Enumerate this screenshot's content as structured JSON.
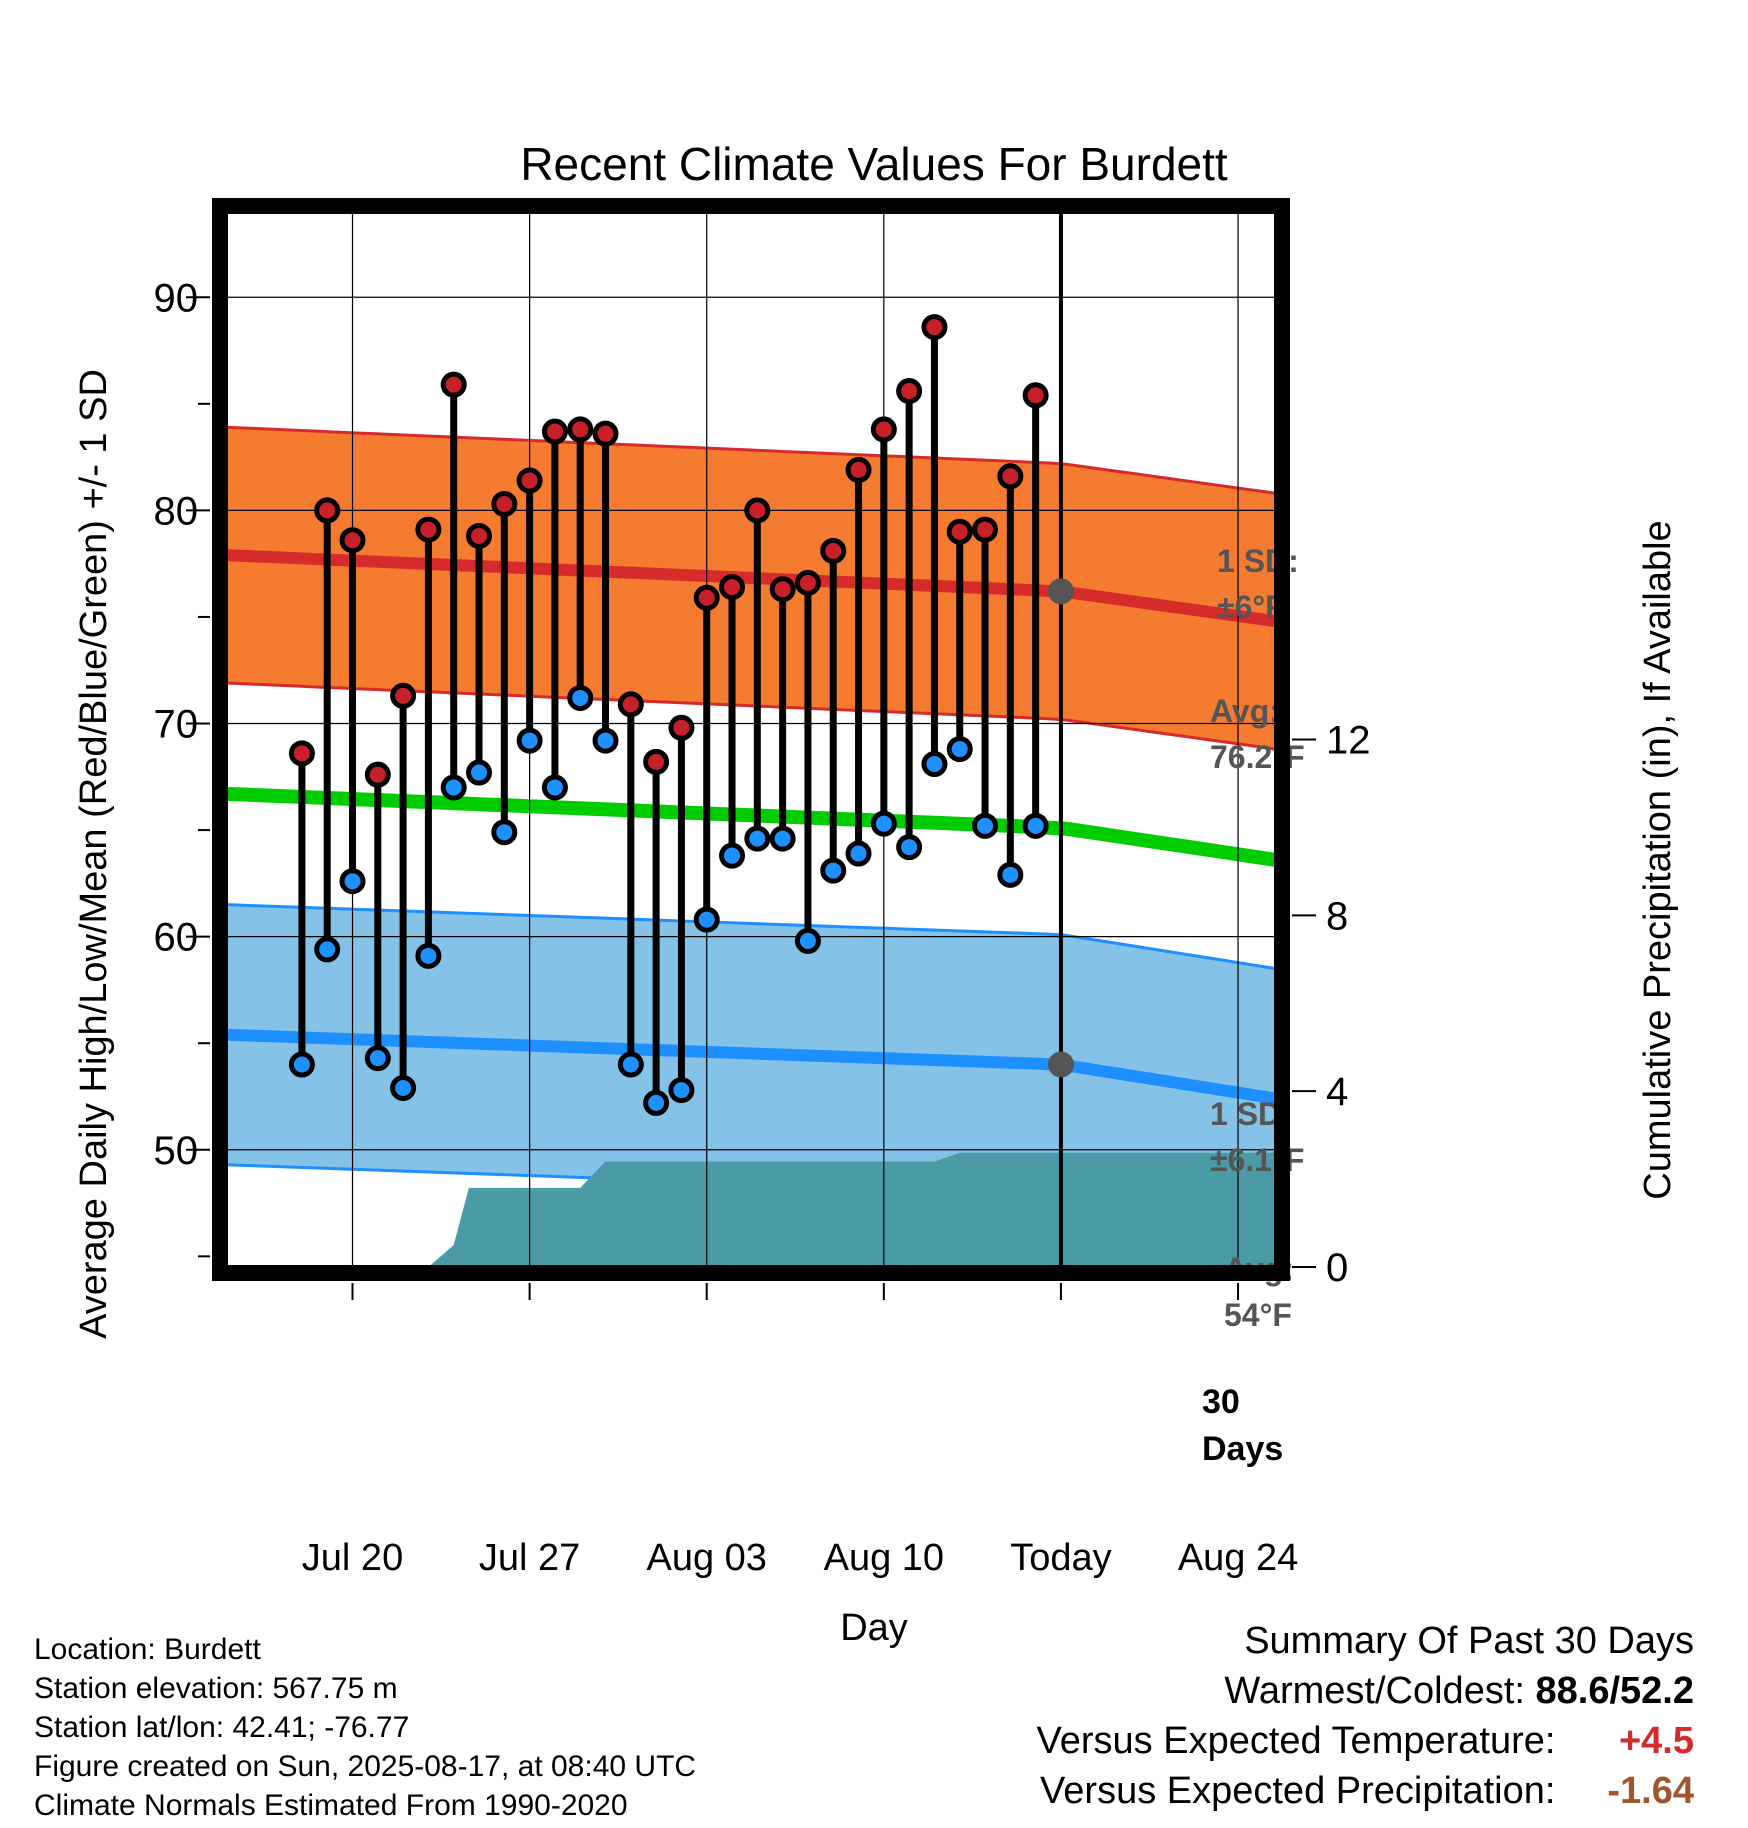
{
  "title": "Recent Climate Values For Burdett",
  "chart_data": {
    "type": "line",
    "title": "Recent Climate Values For Burdett",
    "xlabel": "Day",
    "ylabel": "Average Daily High/Low/Mean (Red/Blue/Green) +/- 1 SD",
    "y2label": "Cumulative Precipitation (in), If Available",
    "x_tick_labels": [
      "Jul 20",
      "Jul 27",
      "Aug 03",
      "Aug 10",
      "Today",
      "Aug 24"
    ],
    "y_ticks": [
      50,
      60,
      70,
      80,
      90
    ],
    "y2_ticks": [
      0,
      4,
      8,
      12
    ],
    "ylim": [
      44.5,
      94
    ],
    "y2lim": [
      0,
      24
    ],
    "x_range_days": [
      -33,
      8.5
    ],
    "daily_highs": [
      68.6,
      80.0,
      78.6,
      67.6,
      71.3,
      79.1,
      85.9,
      78.8,
      80.3,
      81.4,
      83.7,
      83.8,
      83.6,
      70.9,
      68.2,
      69.8,
      75.9,
      76.4,
      80.0,
      76.3,
      76.6,
      78.1,
      81.9,
      83.8,
      85.6,
      88.6,
      79.0,
      79.1,
      81.6,
      85.4
    ],
    "daily_lows": [
      54.0,
      59.4,
      62.6,
      54.3,
      52.9,
      59.1,
      67.0,
      67.7,
      64.9,
      69.2,
      67.0,
      71.2,
      69.2,
      54.0,
      52.2,
      52.8,
      60.8,
      63.8,
      64.6,
      64.6,
      59.8,
      63.1,
      63.9,
      65.3,
      64.2,
      68.1,
      68.8,
      65.2,
      62.9,
      65.2
    ],
    "normal_high": {
      "start": 77.9,
      "today": 76.2,
      "end": 74.8
    },
    "normal_high_sd": 6,
    "normal_low": {
      "start": 55.4,
      "today": 54,
      "end": 52.4
    },
    "normal_low_sd": 6.1,
    "normal_mean": {
      "start": 66.7,
      "today": 65.1,
      "end": 63.6
    },
    "cumulative_precip": [
      {
        "day": -33,
        "in": 0
      },
      {
        "day": -25,
        "in": 0
      },
      {
        "day": -24,
        "in": 0.5
      },
      {
        "day": -23.4,
        "in": 1.8
      },
      {
        "day": -19,
        "in": 1.8
      },
      {
        "day": -18,
        "in": 2.4
      },
      {
        "day": -5,
        "in": 2.4
      },
      {
        "day": -4,
        "in": 2.6
      },
      {
        "day": 8.5,
        "in": 2.6
      }
    ],
    "grid": true,
    "annotations": {
      "high_sd_label": "1 SD:",
      "high_sd_value": "±6°F",
      "high_avg_label": "Avg:",
      "high_avg_value": "76.2°F",
      "low_sd_label": "1 SD:",
      "low_sd_value": "±6.1°F",
      "low_avg_label": "Avg:",
      "low_avg_value": "54°F",
      "window_label_1": "30",
      "window_label_2": "Days"
    },
    "colors": {
      "high_marker": "#c8202a",
      "low_marker": "#1e90ff",
      "high_band": "#f47b30",
      "high_line": "#d72a2a",
      "low_band": "#85c2e8",
      "low_line": "#1e8fff",
      "mean_line": "#00cc00",
      "precip": "#4a9ba5",
      "today_marker": "#555555"
    }
  },
  "footer": {
    "location": "Location: Burdett",
    "elevation": "Station elevation: 567.75 m",
    "latlon": "Station lat/lon: 42.41; -76.77",
    "created": "Figure created on Sun, 2025-08-17, at 08:40 UTC",
    "normals": "Climate Normals Estimated From 1990-2020"
  },
  "summary": {
    "heading": "Summary Of Past 30 Days",
    "warm_cold_label": "Warmest/Coldest:",
    "warm_cold_value": "88.6/52.2",
    "temp_label": "Versus Expected Temperature:",
    "temp_value": "+4.5",
    "precip_label": "Versus Expected Precipitation:",
    "precip_value": "-1.64"
  }
}
